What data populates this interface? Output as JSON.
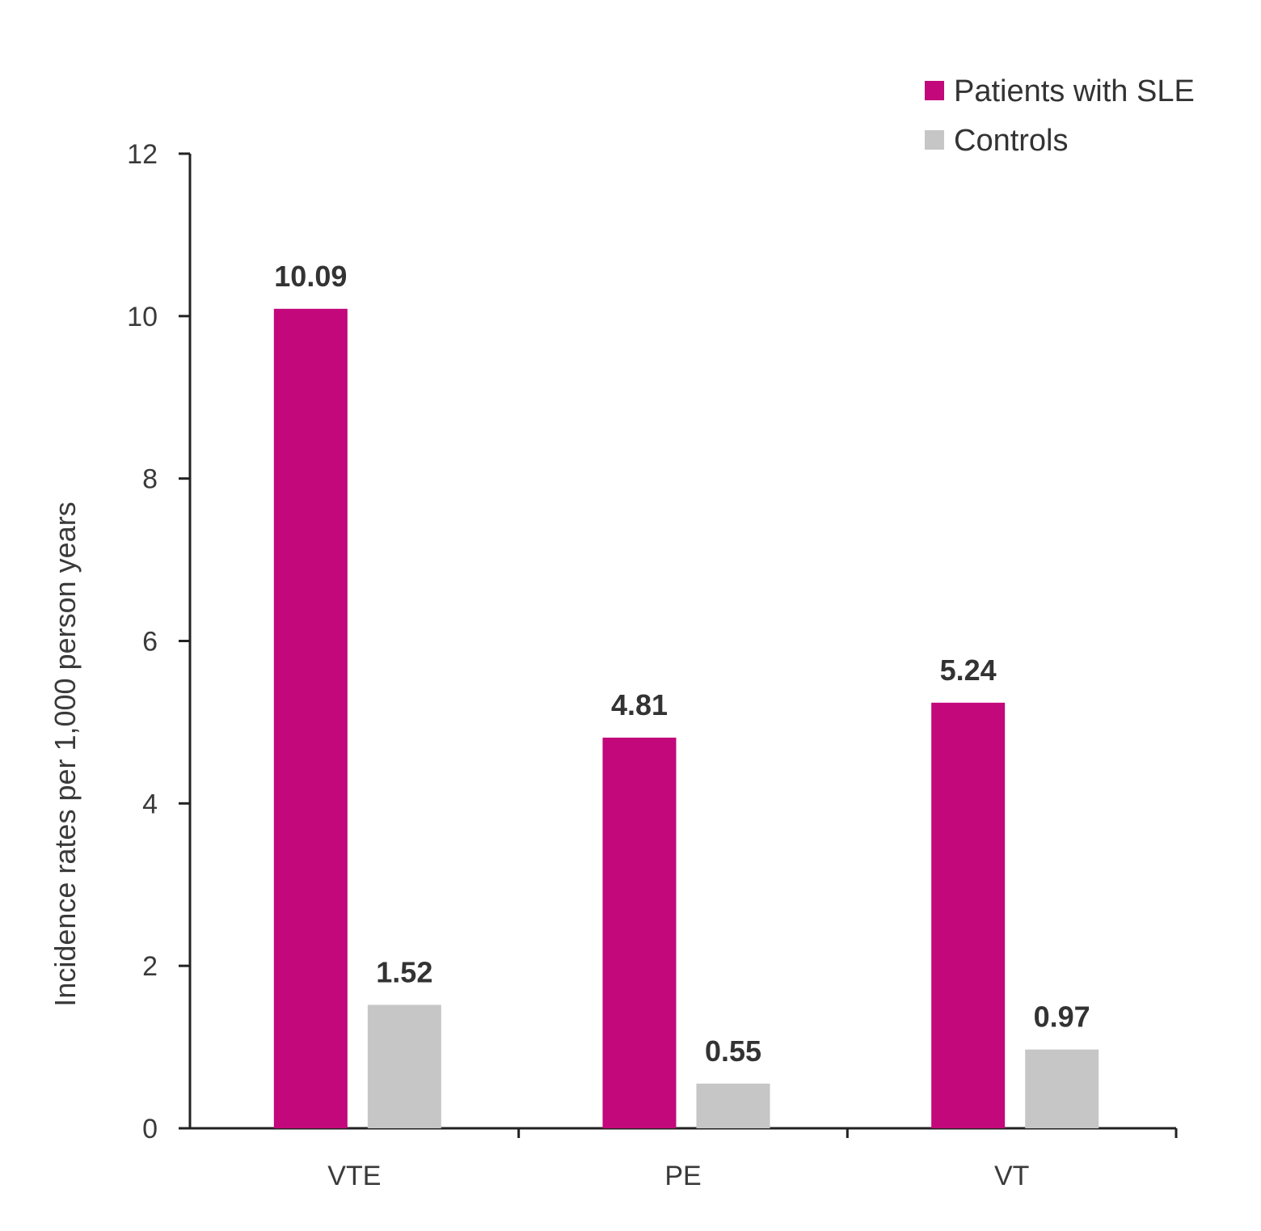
{
  "chart_data": {
    "type": "bar",
    "categories": [
      "VTE",
      "PE",
      "VT"
    ],
    "series": [
      {
        "name": "Patients with SLE",
        "values": [
          10.09,
          4.81,
          5.24
        ],
        "labels": [
          "10.09",
          "4.81",
          "5.24"
        ],
        "color": "#c2087b"
      },
      {
        "name": "Controls",
        "values": [
          1.52,
          0.55,
          0.97
        ],
        "labels": [
          "1.52",
          "0.55",
          "0.97"
        ],
        "color": "#c6c6c6"
      }
    ],
    "title": "",
    "xlabel": "",
    "ylabel": "Incidence rates per 1,000 person years",
    "ylim": [
      0,
      12
    ],
    "yticks": [
      0,
      2,
      4,
      6,
      8,
      10,
      12
    ],
    "grid": false,
    "legend_position": "top-right"
  }
}
